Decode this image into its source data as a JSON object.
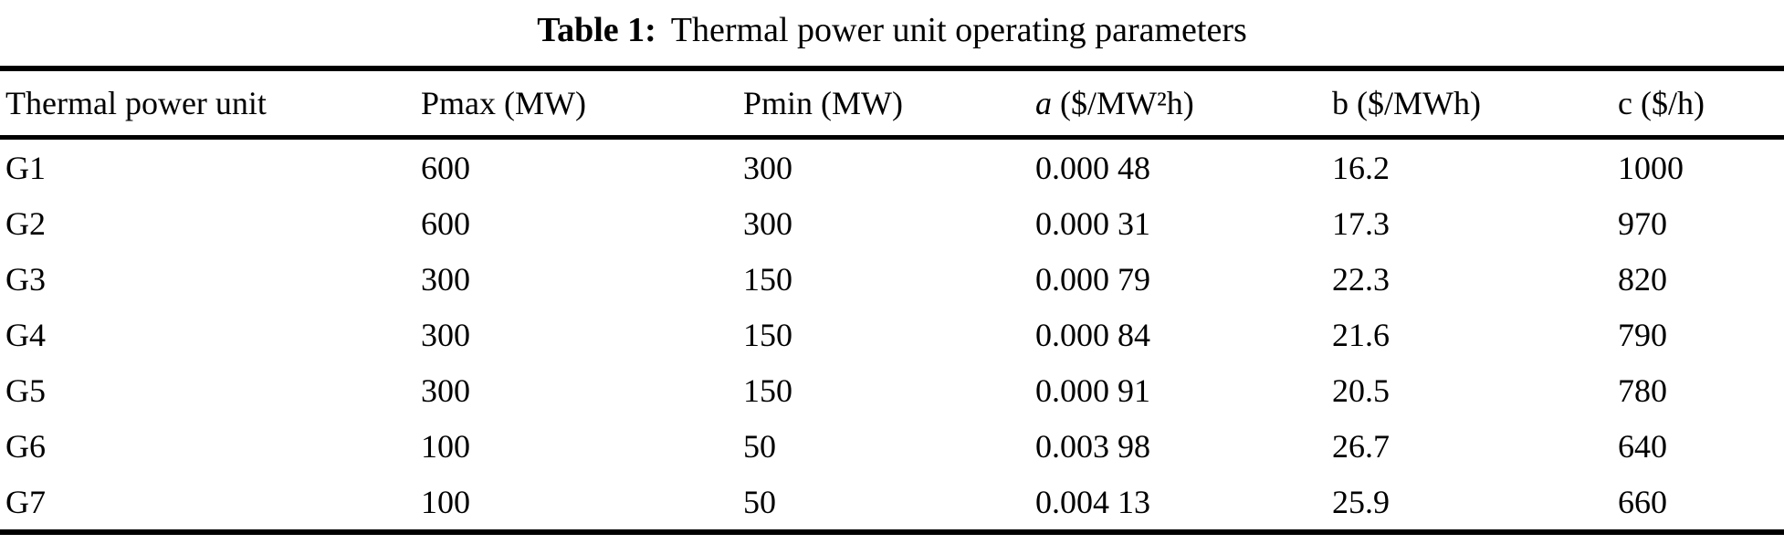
{
  "caption": {
    "number": "Table 1:",
    "text": "Thermal power unit operating parameters"
  },
  "table": {
    "columns": [
      {
        "label": "Thermal power unit"
      },
      {
        "label": "Pmax (MW)"
      },
      {
        "label": "Pmin (MW)"
      },
      {
        "var": "a",
        "unit": " ($/MW²h)"
      },
      {
        "label": "b ($/MWh)"
      },
      {
        "label": "c ($/h)"
      }
    ],
    "rows": [
      [
        "G1",
        "600",
        "300",
        "0.000 48",
        "16.2",
        "1000"
      ],
      [
        "G2",
        "600",
        "300",
        "0.000 31",
        "17.3",
        "970"
      ],
      [
        "G3",
        "300",
        "150",
        "0.000 79",
        "22.3",
        "820"
      ],
      [
        "G4",
        "300",
        "150",
        "0.000 84",
        "21.6",
        "790"
      ],
      [
        "G5",
        "300",
        "150",
        "0.000 91",
        "20.5",
        "780"
      ],
      [
        "G6",
        "100",
        "50",
        "0.003 98",
        "26.7",
        "640"
      ],
      [
        "G7",
        "100",
        "50",
        "0.004 13",
        "25.9",
        "660"
      ]
    ]
  },
  "colors": {
    "text": "#000000",
    "background": "#ffffff",
    "rule": "#000000"
  }
}
